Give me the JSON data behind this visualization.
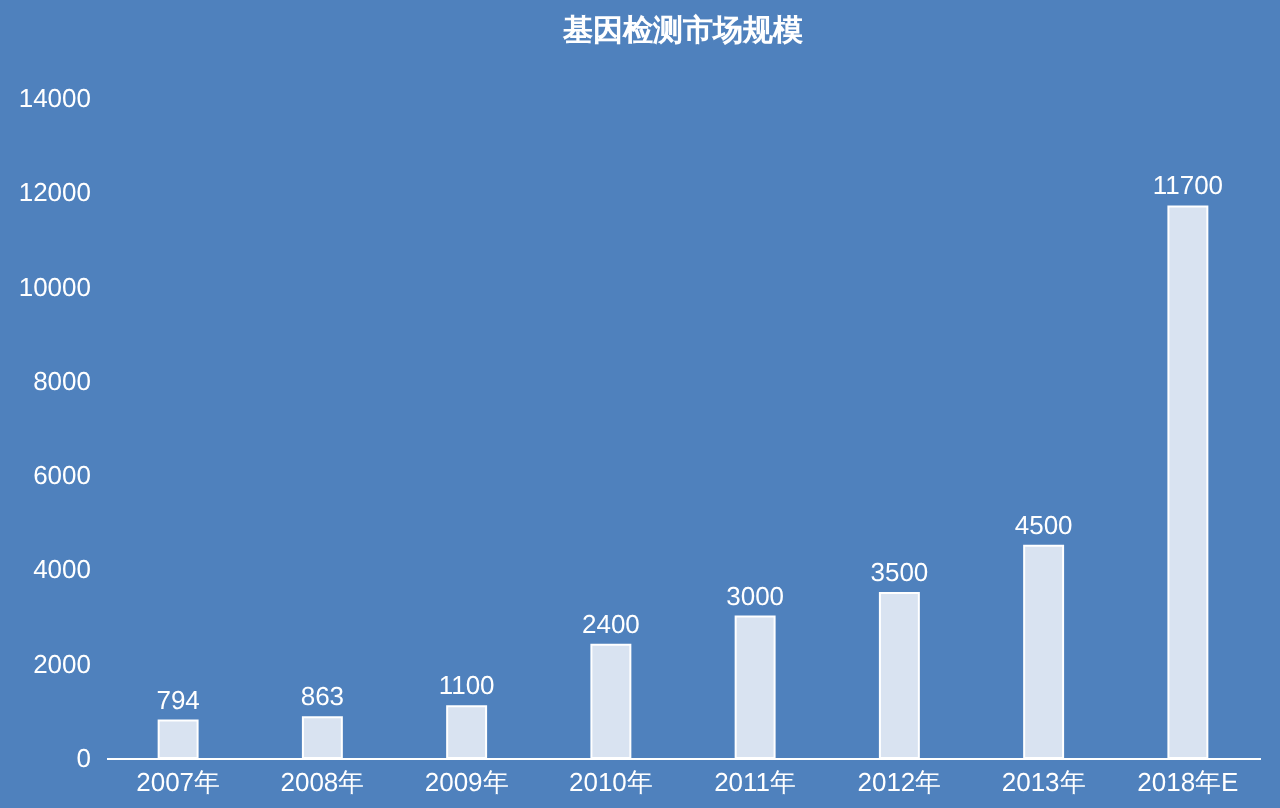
{
  "chart_data": {
    "type": "bar",
    "title": "基因检测市场规模",
    "categories": [
      "2007年",
      "2008年",
      "2009年",
      "2010年",
      "2011年",
      "2012年",
      "2013年",
      "2018年E"
    ],
    "values": [
      794,
      863,
      1100,
      2400,
      3000,
      3500,
      4500,
      11700
    ],
    "color": "#d9e3f1",
    "ylim": [
      0,
      14000
    ],
    "yticks": [
      0,
      2000,
      4000,
      6000,
      8000,
      10000,
      12000,
      14000
    ],
    "grid": false,
    "data_labels": true
  }
}
